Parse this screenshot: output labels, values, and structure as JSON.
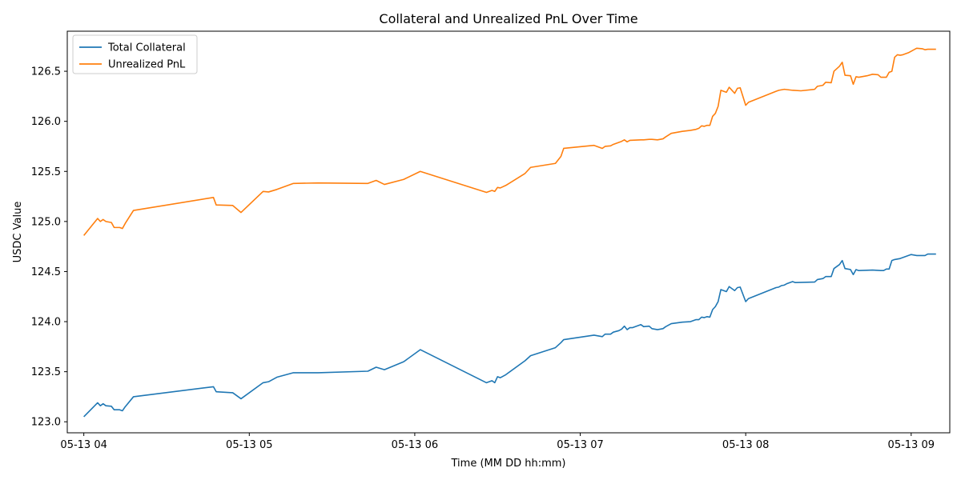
{
  "chart_data": {
    "type": "line",
    "title": "Collateral and Unrealized PnL Over Time",
    "xlabel": "Time (MM DD hh:mm)",
    "ylabel": "USDC Value",
    "xlim": [
      "05-13 04:00",
      "05-13 09:14"
    ],
    "ylim": [
      122.89,
      126.9
    ],
    "x_tick_labels": [
      "05-13 04",
      "05-13 05",
      "05-13 06",
      "05-13 07",
      "05-13 08",
      "05-13 09"
    ],
    "x_ticks": [
      "05-13 04:00",
      "05-13 05:00",
      "05-13 06:00",
      "05-13 07:00",
      "05-13 08:00",
      "05-13 09:00"
    ],
    "y_ticks": [
      123.0,
      123.5,
      124.0,
      124.5,
      125.0,
      125.5,
      126.0,
      126.5
    ],
    "y_tick_labels": [
      "123.0",
      "123.5",
      "124.0",
      "124.5",
      "125.0",
      "125.5",
      "126.0",
      "126.5"
    ],
    "legend_position": "top-left",
    "grid": false,
    "series": [
      {
        "name": "Total Collateral",
        "color": "#1f77b4",
        "points": [
          [
            "05-13 04:00",
            123.05
          ],
          [
            "05-13 04:05",
            123.19
          ],
          [
            "05-13 04:06",
            123.16
          ],
          [
            "05-13 04:07",
            123.18
          ],
          [
            "05-13 04:08",
            123.16
          ],
          [
            "05-13 04:10",
            123.155
          ],
          [
            "05-13 04:11",
            123.12
          ],
          [
            "05-13 04:13",
            123.12
          ],
          [
            "05-13 04:14",
            123.11
          ],
          [
            "05-13 04:15",
            123.15
          ],
          [
            "05-13 04:18",
            123.25
          ],
          [
            "05-13 04:47",
            123.35
          ],
          [
            "05-13 04:48",
            123.3
          ],
          [
            "05-13 04:54",
            123.29
          ],
          [
            "05-13 04:57",
            123.23
          ],
          [
            "05-13 05:05",
            123.39
          ],
          [
            "05-13 05:07",
            123.4
          ],
          [
            "05-13 05:10",
            123.445
          ],
          [
            "05-13 05:16",
            123.49
          ],
          [
            "05-13 05:25",
            123.49
          ],
          [
            "05-13 05:43",
            123.505
          ],
          [
            "05-13 05:46",
            123.545
          ],
          [
            "05-13 05:49",
            123.52
          ],
          [
            "05-13 05:56",
            123.6
          ],
          [
            "05-13 06:02",
            123.72
          ],
          [
            "05-13 06:26",
            123.39
          ],
          [
            "05-13 06:28",
            123.41
          ],
          [
            "05-13 06:29",
            123.39
          ],
          [
            "05-13 06:30",
            123.45
          ],
          [
            "05-13 06:31",
            123.44
          ],
          [
            "05-13 06:33",
            123.47
          ],
          [
            "05-13 06:40",
            123.61
          ],
          [
            "05-13 06:42",
            123.66
          ],
          [
            "05-13 06:51",
            123.74
          ],
          [
            "05-13 06:53",
            123.79
          ],
          [
            "05-13 06:54",
            123.82
          ],
          [
            "05-13 07:05",
            123.865
          ],
          [
            "05-13 07:08",
            123.85
          ],
          [
            "05-13 07:09",
            123.875
          ],
          [
            "05-13 07:11",
            123.875
          ],
          [
            "05-13 07:12",
            123.895
          ],
          [
            "05-13 07:14",
            123.91
          ],
          [
            "05-13 07:15",
            123.925
          ],
          [
            "05-13 07:16",
            123.955
          ],
          [
            "05-13 07:17",
            123.92
          ],
          [
            "05-13 07:18",
            123.94
          ],
          [
            "05-13 07:19",
            123.94
          ],
          [
            "05-13 07:22",
            123.97
          ],
          [
            "05-13 07:23",
            123.95
          ],
          [
            "05-13 07:25",
            123.955
          ],
          [
            "05-13 07:26",
            123.93
          ],
          [
            "05-13 07:28",
            123.92
          ],
          [
            "05-13 07:30",
            123.93
          ],
          [
            "05-13 07:31",
            123.95
          ],
          [
            "05-13 07:33",
            123.98
          ],
          [
            "05-13 07:37",
            123.995
          ],
          [
            "05-13 07:40",
            124.0
          ],
          [
            "05-13 07:42",
            124.02
          ],
          [
            "05-13 07:43",
            124.02
          ],
          [
            "05-13 07:44",
            124.045
          ],
          [
            "05-13 07:45",
            124.04
          ],
          [
            "05-13 07:46",
            124.05
          ],
          [
            "05-13 07:47",
            124.045
          ],
          [
            "05-13 07:48",
            124.12
          ],
          [
            "05-13 07:49",
            124.15
          ],
          [
            "05-13 07:50",
            124.2
          ],
          [
            "05-13 07:51",
            124.32
          ],
          [
            "05-13 07:53",
            124.3
          ],
          [
            "05-13 07:54",
            124.35
          ],
          [
            "05-13 07:56",
            124.31
          ],
          [
            "05-13 07:57",
            124.34
          ],
          [
            "05-13 07:58",
            124.345
          ],
          [
            "05-13 08:00",
            124.2
          ],
          [
            "05-13 08:01",
            124.23
          ],
          [
            "05-13 08:11",
            124.34
          ],
          [
            "05-13 08:12",
            124.345
          ],
          [
            "05-13 08:13",
            124.36
          ],
          [
            "05-13 08:14",
            124.365
          ],
          [
            "05-13 08:15",
            124.38
          ],
          [
            "05-13 08:17",
            124.4
          ],
          [
            "05-13 08:18",
            124.39
          ],
          [
            "05-13 08:25",
            124.395
          ],
          [
            "05-13 08:26",
            124.42
          ],
          [
            "05-13 08:28",
            124.43
          ],
          [
            "05-13 08:29",
            124.45
          ],
          [
            "05-13 08:31",
            124.45
          ],
          [
            "05-13 08:32",
            124.53
          ],
          [
            "05-13 08:34",
            124.57
          ],
          [
            "05-13 08:35",
            124.61
          ],
          [
            "05-13 08:36",
            124.53
          ],
          [
            "05-13 08:38",
            124.52
          ],
          [
            "05-13 08:39",
            124.47
          ],
          [
            "05-13 08:40",
            124.52
          ],
          [
            "05-13 08:41",
            124.51
          ],
          [
            "05-13 08:46",
            124.515
          ],
          [
            "05-13 08:49",
            124.51
          ],
          [
            "05-13 08:50",
            124.51
          ],
          [
            "05-13 08:51",
            124.525
          ],
          [
            "05-13 08:52",
            124.525
          ],
          [
            "05-13 08:53",
            124.61
          ],
          [
            "05-13 08:54",
            124.62
          ],
          [
            "05-13 08:56",
            124.63
          ],
          [
            "05-13 08:59",
            124.66
          ],
          [
            "05-13 09:00",
            124.67
          ],
          [
            "05-13 09:02",
            124.66
          ],
          [
            "05-13 09:05",
            124.66
          ],
          [
            "05-13 09:06",
            124.675
          ],
          [
            "05-13 09:09",
            124.675
          ]
        ]
      },
      {
        "name": "Unrealized PnL",
        "color": "#ff7f0e",
        "points": [
          [
            "05-13 04:00",
            124.86
          ],
          [
            "05-13 04:05",
            125.03
          ],
          [
            "05-13 04:06",
            125.0
          ],
          [
            "05-13 04:07",
            125.02
          ],
          [
            "05-13 04:08",
            125.0
          ],
          [
            "05-13 04:10",
            124.99
          ],
          [
            "05-13 04:11",
            124.94
          ],
          [
            "05-13 04:13",
            124.94
          ],
          [
            "05-13 04:14",
            124.93
          ],
          [
            "05-13 04:15",
            124.98
          ],
          [
            "05-13 04:18",
            125.11
          ],
          [
            "05-13 04:47",
            125.24
          ],
          [
            "05-13 04:48",
            125.165
          ],
          [
            "05-13 04:54",
            125.16
          ],
          [
            "05-13 04:57",
            125.09
          ],
          [
            "05-13 05:05",
            125.3
          ],
          [
            "05-13 05:07",
            125.295
          ],
          [
            "05-13 05:10",
            125.32
          ],
          [
            "05-13 05:16",
            125.38
          ],
          [
            "05-13 05:25",
            125.385
          ],
          [
            "05-13 05:43",
            125.38
          ],
          [
            "05-13 05:46",
            125.41
          ],
          [
            "05-13 05:49",
            125.37
          ],
          [
            "05-13 05:56",
            125.42
          ],
          [
            "05-13 06:02",
            125.5
          ],
          [
            "05-13 06:26",
            125.29
          ],
          [
            "05-13 06:28",
            125.31
          ],
          [
            "05-13 06:29",
            125.3
          ],
          [
            "05-13 06:30",
            125.34
          ],
          [
            "05-13 06:31",
            125.335
          ],
          [
            "05-13 06:33",
            125.36
          ],
          [
            "05-13 06:40",
            125.48
          ],
          [
            "05-13 06:42",
            125.54
          ],
          [
            "05-13 06:51",
            125.58
          ],
          [
            "05-13 06:53",
            125.65
          ],
          [
            "05-13 06:54",
            125.73
          ],
          [
            "05-13 07:05",
            125.76
          ],
          [
            "05-13 07:08",
            125.73
          ],
          [
            "05-13 07:09",
            125.75
          ],
          [
            "05-13 07:11",
            125.755
          ],
          [
            "05-13 07:12",
            125.77
          ],
          [
            "05-13 07:14",
            125.79
          ],
          [
            "05-13 07:15",
            125.8
          ],
          [
            "05-13 07:16",
            125.815
          ],
          [
            "05-13 07:17",
            125.795
          ],
          [
            "05-13 07:18",
            125.81
          ],
          [
            "05-13 07:22",
            125.815
          ],
          [
            "05-13 07:23",
            125.815
          ],
          [
            "05-13 07:25",
            125.82
          ],
          [
            "05-13 07:26",
            125.82
          ],
          [
            "05-13 07:28",
            125.815
          ],
          [
            "05-13 07:30",
            125.825
          ],
          [
            "05-13 07:31",
            125.845
          ],
          [
            "05-13 07:33",
            125.88
          ],
          [
            "05-13 07:37",
            125.9
          ],
          [
            "05-13 07:40",
            125.91
          ],
          [
            "05-13 07:42",
            125.92
          ],
          [
            "05-13 07:43",
            125.93
          ],
          [
            "05-13 07:44",
            125.955
          ],
          [
            "05-13 07:45",
            125.95
          ],
          [
            "05-13 07:46",
            125.96
          ],
          [
            "05-13 07:47",
            125.96
          ],
          [
            "05-13 07:48",
            126.05
          ],
          [
            "05-13 07:49",
            126.08
          ],
          [
            "05-13 07:50",
            126.15
          ],
          [
            "05-13 07:51",
            126.31
          ],
          [
            "05-13 07:53",
            126.29
          ],
          [
            "05-13 07:54",
            126.34
          ],
          [
            "05-13 07:56",
            126.28
          ],
          [
            "05-13 07:57",
            126.33
          ],
          [
            "05-13 07:58",
            126.335
          ],
          [
            "05-13 08:00",
            126.16
          ],
          [
            "05-13 08:01",
            126.19
          ],
          [
            "05-13 08:11",
            126.3
          ],
          [
            "05-13 08:12",
            126.31
          ],
          [
            "05-13 08:14",
            126.32
          ],
          [
            "05-13 08:17",
            126.31
          ],
          [
            "05-13 08:20",
            126.305
          ],
          [
            "05-13 08:25",
            126.32
          ],
          [
            "05-13 08:26",
            126.35
          ],
          [
            "05-13 08:28",
            126.36
          ],
          [
            "05-13 08:29",
            126.39
          ],
          [
            "05-13 08:31",
            126.385
          ],
          [
            "05-13 08:32",
            126.5
          ],
          [
            "05-13 08:34",
            126.55
          ],
          [
            "05-13 08:35",
            126.59
          ],
          [
            "05-13 08:36",
            126.46
          ],
          [
            "05-13 08:38",
            126.455
          ],
          [
            "05-13 08:39",
            126.37
          ],
          [
            "05-13 08:40",
            126.445
          ],
          [
            "05-13 08:41",
            126.44
          ],
          [
            "05-13 08:44",
            126.455
          ],
          [
            "05-13 08:46",
            126.47
          ],
          [
            "05-13 08:48",
            126.465
          ],
          [
            "05-13 08:49",
            126.44
          ],
          [
            "05-13 08:51",
            126.44
          ],
          [
            "05-13 08:52",
            126.49
          ],
          [
            "05-13 08:53",
            126.5
          ],
          [
            "05-13 08:54",
            126.64
          ],
          [
            "05-13 08:55",
            126.665
          ],
          [
            "05-13 08:56",
            126.66
          ],
          [
            "05-13 08:57",
            126.665
          ],
          [
            "05-13 08:59",
            126.685
          ],
          [
            "05-13 09:00",
            126.7
          ],
          [
            "05-13 09:02",
            126.73
          ],
          [
            "05-13 09:04",
            126.725
          ],
          [
            "05-13 09:05",
            126.715
          ],
          [
            "05-13 09:06",
            126.72
          ],
          [
            "05-13 09:09",
            126.72
          ]
        ]
      }
    ]
  }
}
